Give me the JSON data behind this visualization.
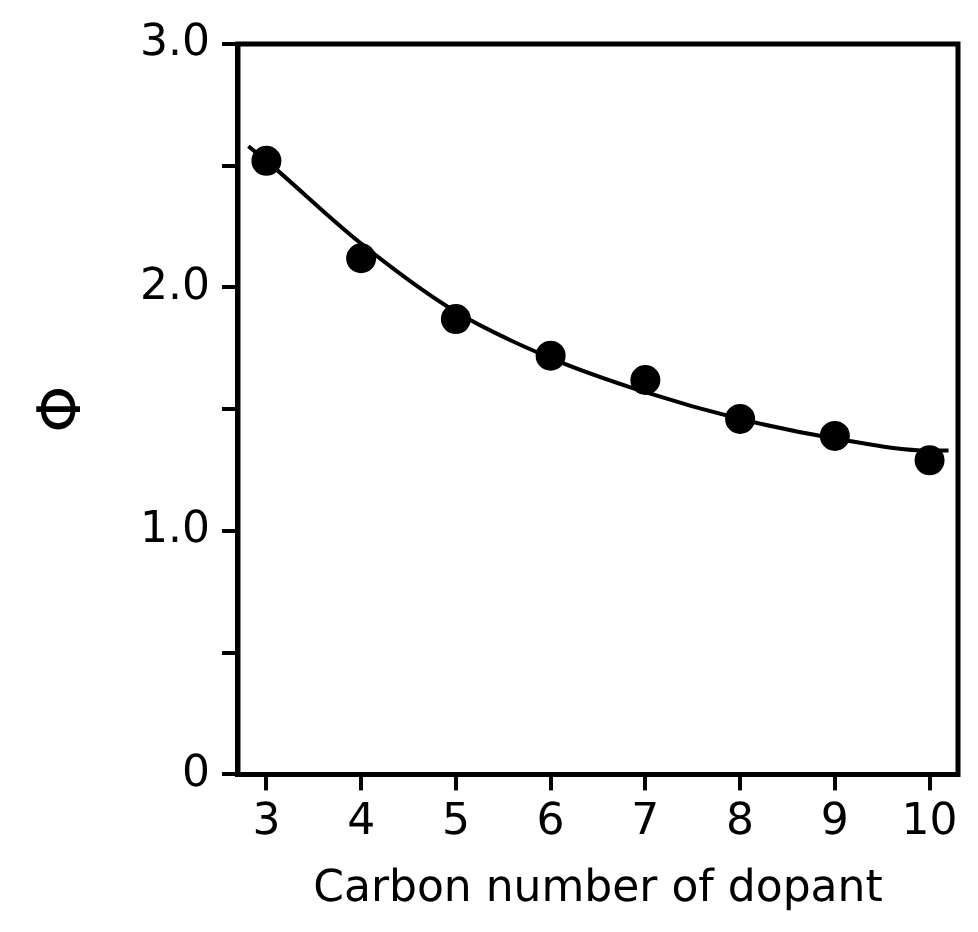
{
  "chart_data": {
    "type": "scatter",
    "xlabel": "Carbon number of dopant",
    "ylabel": "Φ",
    "xlim": [
      2.7,
      10.3
    ],
    "xticks": [
      3,
      4,
      5,
      6,
      7,
      8,
      9,
      10
    ],
    "ylim": [
      0,
      3
    ],
    "yticks": [
      0,
      {
        "value": 0.5,
        "label": null
      },
      "1.0",
      {
        "value": 1.5,
        "label": null
      },
      {
        "value": 2,
        "label": "2.0"
      },
      {
        "value": 2.5,
        "label": null
      },
      {
        "value": 3,
        "label": "3.0"
      }
    ],
    "grid": false,
    "legend": false,
    "series": [
      {
        "color": "#000000",
        "marker": "circle",
        "x": [
          3,
          4,
          5,
          6,
          7,
          8,
          9,
          10
        ],
        "values": [
          2.52,
          2.12,
          1.87,
          1.72,
          1.62,
          1.46,
          1.39,
          1.29
        ]
      },
      {
        "type": "line",
        "color": "#000000",
        "marker": "none",
        "line_style": "solid",
        "x": [
          2.81,
          3,
          4,
          5,
          6,
          7,
          8,
          9,
          10,
          10.2
        ],
        "values": [
          2.58,
          2.52,
          2.18,
          1.9,
          1.71,
          1.57,
          1.46,
          1.38,
          1.33,
          1.33
        ]
      }
    ]
  }
}
